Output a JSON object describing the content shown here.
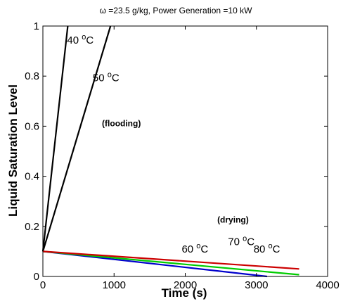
{
  "chart_data": {
    "type": "line",
    "title": "ω =23.5 g/kg, Power Generation =10 kW",
    "xlabel": "Time (s)",
    "ylabel": "Liquid Saturation Level",
    "xlim": [
      0,
      4000
    ],
    "ylim": [
      0,
      1
    ],
    "xticks": [
      "0",
      "1000",
      "2000",
      "3000",
      "4000"
    ],
    "yticks": [
      "0",
      "0.2",
      "0.4",
      "0.6",
      "0.8",
      "1"
    ],
    "grid": false,
    "series": [
      {
        "name": "40 oC",
        "color": "#000000",
        "x": [
          0,
          350
        ],
        "y": [
          0.1,
          1.0
        ]
      },
      {
        "name": "50 oC",
        "color": "#000000",
        "x": [
          0,
          950
        ],
        "y": [
          0.1,
          1.0
        ]
      },
      {
        "name": "60 oC",
        "color": "#0000cc",
        "x": [
          0,
          3150
        ],
        "y": [
          0.1,
          0.0
        ]
      },
      {
        "name": "70 oC",
        "color": "#00cc00",
        "x": [
          0,
          3600
        ],
        "y": [
          0.1,
          0.007
        ]
      },
      {
        "name": "80 oC",
        "color": "#cc0000",
        "x": [
          0,
          3600
        ],
        "y": [
          0.1,
          0.03
        ]
      }
    ],
    "annotations": [
      {
        "text": "40",
        "sup": "o",
        "unit": "C",
        "x": 340,
        "y": 0.93
      },
      {
        "text": "50",
        "sup": "o",
        "unit": "C",
        "x": 700,
        "y": 0.78
      },
      {
        "text": "(flooding)",
        "x": 830,
        "y": 0.6
      },
      {
        "text": "(drying)",
        "x": 2450,
        "y": 0.215
      },
      {
        "text": "60",
        "sup": "o",
        "unit": "C",
        "x": 1950,
        "y": 0.095
      },
      {
        "text": "70",
        "sup": "o",
        "unit": "C",
        "x": 2600,
        "y": 0.125
      },
      {
        "text": "80",
        "sup": "o",
        "unit": "C",
        "x": 2960,
        "y": 0.095
      }
    ]
  }
}
